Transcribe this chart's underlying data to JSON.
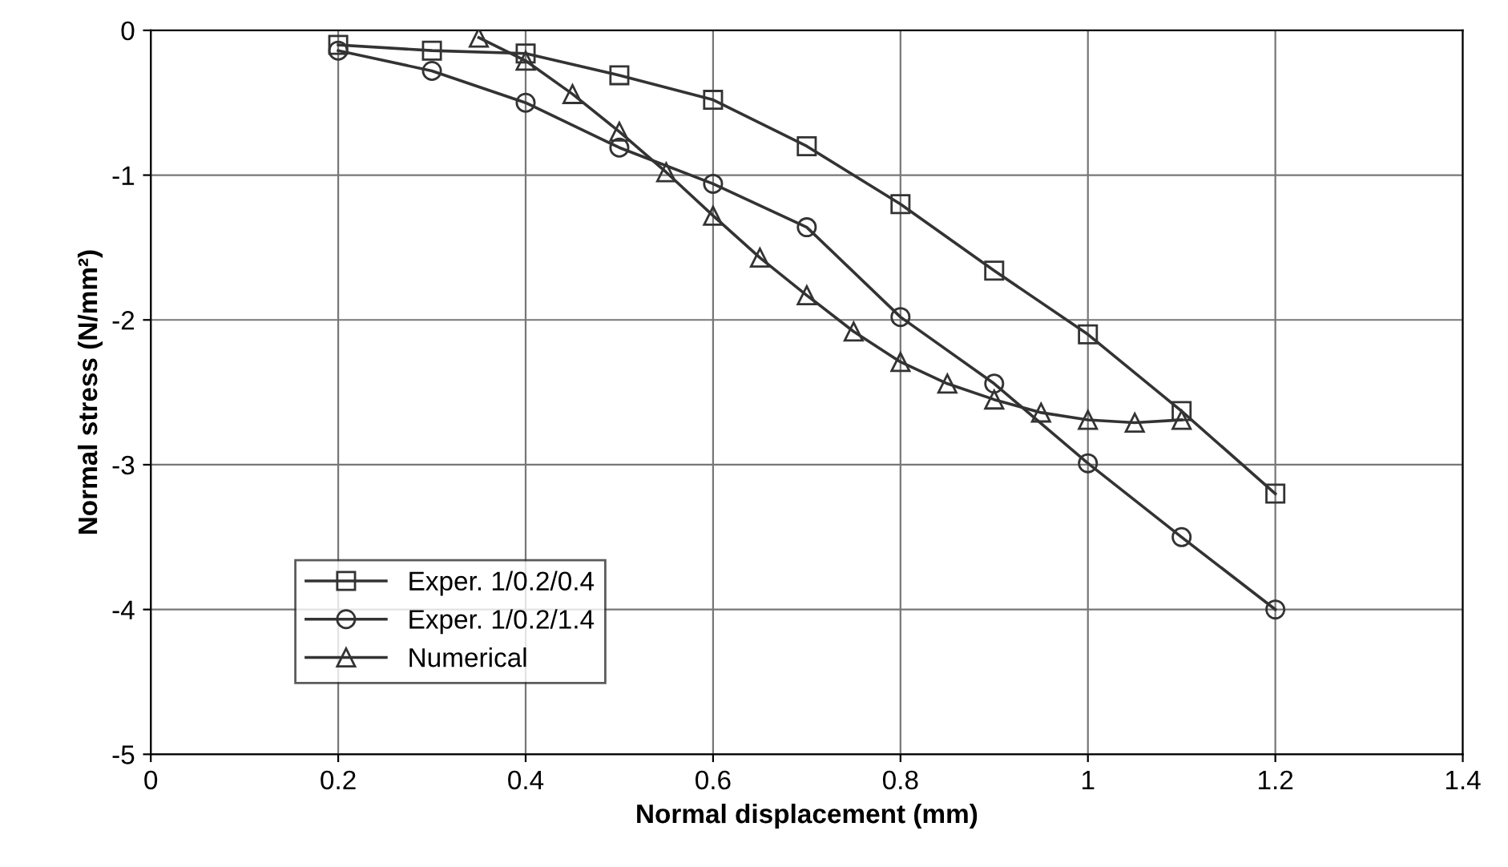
{
  "chart_data": {
    "type": "line",
    "xlabel": "Normal displacement (mm)",
    "ylabel": "Normal stress (N/mm²)",
    "xlim": [
      0,
      1.4
    ],
    "xticks": [
      0,
      0.2,
      0.4,
      0.6,
      0.8,
      1,
      1.2,
      1.4
    ],
    "ylim": [
      -5,
      0
    ],
    "yticks": [
      -5,
      -4,
      -3,
      -2,
      -1,
      0
    ],
    "grid": true,
    "legend": "bottom left",
    "series": [
      {
        "name": "Exper. 1/0.2/0.4",
        "color": "#333333",
        "marker": "square",
        "x": [
          0.2,
          0.3,
          0.4,
          0.5,
          0.6,
          0.7,
          0.8,
          0.9,
          1.0,
          1.1,
          1.2
        ],
        "values": [
          -0.1,
          -0.14,
          -0.16,
          -0.31,
          -0.48,
          -0.8,
          -1.2,
          -1.66,
          -2.1,
          -2.63,
          -3.2
        ]
      },
      {
        "name": "Exper. 1/0.2/1.4",
        "color": "#333333",
        "marker": "circle",
        "x": [
          0.2,
          0.3,
          0.4,
          0.5,
          0.6,
          0.7,
          0.8,
          0.9,
          1.0,
          1.1,
          1.2
        ],
        "values": [
          -0.14,
          -0.28,
          -0.5,
          -0.81,
          -1.06,
          -1.36,
          -1.98,
          -2.44,
          -2.99,
          -3.5,
          -4.0
        ]
      },
      {
        "name": "Numerical",
        "color": "#333333",
        "marker": "triangle",
        "x": [
          0.35,
          0.4,
          0.45,
          0.5,
          0.55,
          0.6,
          0.65,
          0.7,
          0.75,
          0.8,
          0.85,
          0.9,
          0.95,
          1.0,
          1.05,
          1.1
        ],
        "values": [
          -0.05,
          -0.21,
          -0.44,
          -0.7,
          -0.98,
          -1.28,
          -1.57,
          -1.83,
          -2.08,
          -2.29,
          -2.44,
          -2.55,
          -2.64,
          -2.69,
          -2.71,
          -2.69
        ]
      }
    ]
  }
}
